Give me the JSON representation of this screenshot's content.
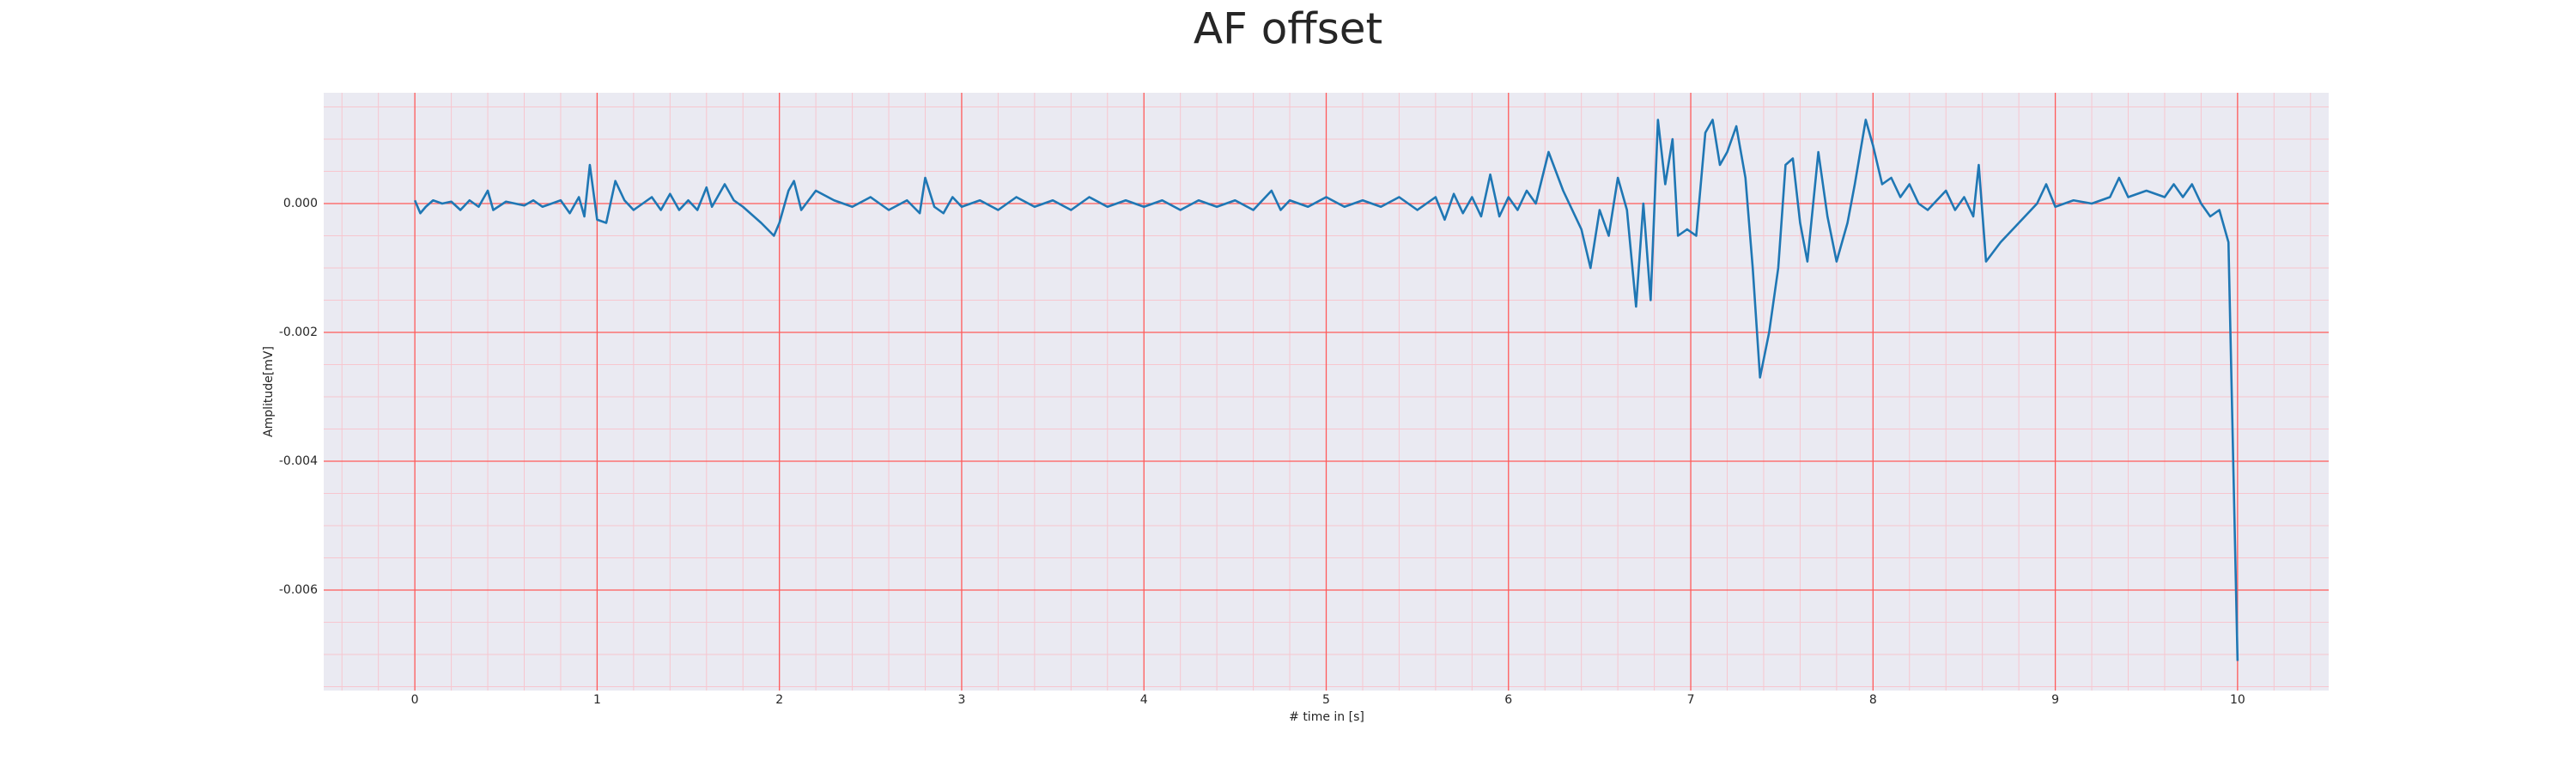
{
  "chart_data": {
    "type": "line",
    "title": "AF offset",
    "xlabel": "# time in [s]",
    "ylabel": "Amplitude[mV]",
    "color": "#1f77b4",
    "facecolor": "#eaeaf2",
    "grid": true,
    "grid_color": "#ff5a5a",
    "minor_grid": true,
    "minor_grid_color": "#f7c6cf",
    "xlim": [
      -0.5,
      10.5
    ],
    "ylim": [
      -0.00756,
      0.00172
    ],
    "xticks": [
      0,
      1,
      2,
      3,
      4,
      5,
      6,
      7,
      8,
      9,
      10
    ],
    "yticks": [
      {
        "value": 0,
        "label": "0.000"
      },
      {
        "value": -0.002,
        "label": "-0.002"
      },
      {
        "value": -0.004,
        "label": "-0.004"
      },
      {
        "value": -0.006,
        "label": "-0.006"
      }
    ],
    "xminorticks": [
      -0.4,
      -0.2,
      0.2,
      0.4,
      0.6,
      0.8,
      1.2,
      1.4,
      1.6,
      1.8,
      2.2,
      2.4,
      2.6,
      2.8,
      3.2,
      3.4,
      3.6,
      3.8,
      4.2,
      4.4,
      4.6,
      4.8,
      5.2,
      5.4,
      5.6,
      5.8,
      6.2,
      6.4,
      6.6,
      6.8,
      7.2,
      7.4,
      7.6,
      7.8,
      8.2,
      8.4,
      8.6,
      8.8,
      9.2,
      9.4,
      9.6,
      9.8,
      10.2,
      10.4
    ],
    "yminorticks": [
      0.0015,
      0.001,
      0.0005,
      -0.0005,
      -0.001,
      -0.0015,
      -0.0025,
      -0.003,
      -0.0035,
      -0.0045,
      -0.005,
      -0.0055,
      -0.0065,
      -0.007,
      -0.0075
    ],
    "x": [
      0,
      0.03,
      0.06,
      0.1,
      0.15,
      0.2,
      0.25,
      0.3,
      0.35,
      0.4,
      0.43,
      0.5,
      0.6,
      0.65,
      0.7,
      0.8,
      0.85,
      0.9,
      0.93,
      0.96,
      1.0,
      1.05,
      1.1,
      1.15,
      1.2,
      1.3,
      1.35,
      1.4,
      1.45,
      1.5,
      1.55,
      1.6,
      1.63,
      1.7,
      1.75,
      1.8,
      1.9,
      1.97,
      2.0,
      2.05,
      2.08,
      2.12,
      2.2,
      2.3,
      2.4,
      2.5,
      2.6,
      2.7,
      2.77,
      2.8,
      2.85,
      2.9,
      2.95,
      3.0,
      3.1,
      3.2,
      3.3,
      3.4,
      3.5,
      3.6,
      3.7,
      3.8,
      3.9,
      4.0,
      4.1,
      4.2,
      4.3,
      4.4,
      4.5,
      4.6,
      4.7,
      4.75,
      4.8,
      4.9,
      5.0,
      5.1,
      5.2,
      5.3,
      5.4,
      5.5,
      5.6,
      5.65,
      5.7,
      5.75,
      5.8,
      5.85,
      5.9,
      5.95,
      6.0,
      6.05,
      6.1,
      6.15,
      6.22,
      6.3,
      6.4,
      6.45,
      6.5,
      6.55,
      6.6,
      6.65,
      6.7,
      6.74,
      6.78,
      6.82,
      6.86,
      6.9,
      6.93,
      6.98,
      7.03,
      7.08,
      7.12,
      7.16,
      7.2,
      7.25,
      7.3,
      7.34,
      7.38,
      7.43,
      7.48,
      7.52,
      7.56,
      7.6,
      7.64,
      7.7,
      7.75,
      7.8,
      7.86,
      7.9,
      7.96,
      8.0,
      8.05,
      8.1,
      8.15,
      8.2,
      8.25,
      8.3,
      8.4,
      8.45,
      8.5,
      8.55,
      8.58,
      8.62,
      8.7,
      8.8,
      8.9,
      8.95,
      9.0,
      9.1,
      9.2,
      9.3,
      9.35,
      9.4,
      9.5,
      9.6,
      9.65,
      9.7,
      9.75,
      9.8,
      9.85,
      9.9,
      9.95,
      10.0
    ],
    "values": [
      5e-05,
      -0.00015,
      -5e-05,
      5e-05,
      0,
      3e-05,
      -0.0001,
      5e-05,
      -5e-05,
      0.0002,
      -0.0001,
      3e-05,
      -3e-05,
      5e-05,
      -5e-05,
      5e-05,
      -0.00015,
      0.0001,
      -0.0002,
      0.0006,
      -0.00025,
      -0.0003,
      0.00035,
      5e-05,
      -0.0001,
      0.0001,
      -0.0001,
      0.00015,
      -0.0001,
      5e-05,
      -0.0001,
      0.00025,
      -5e-05,
      0.0003,
      5e-05,
      -5e-05,
      -0.0003,
      -0.0005,
      -0.0003,
      0.0002,
      0.00035,
      -0.0001,
      0.0002,
      5e-05,
      -5e-05,
      0.0001,
      -0.0001,
      5e-05,
      -0.00015,
      0.0004,
      -5e-05,
      -0.00015,
      0.0001,
      -5e-05,
      5e-05,
      -0.0001,
      0.0001,
      -5e-05,
      5e-05,
      -0.0001,
      0.0001,
      -5e-05,
      5e-05,
      -5e-05,
      5e-05,
      -0.0001,
      5e-05,
      -5e-05,
      5e-05,
      -0.0001,
      0.0002,
      -0.0001,
      5e-05,
      -5e-05,
      0.0001,
      -5e-05,
      5e-05,
      -5e-05,
      0.0001,
      -0.0001,
      0.0001,
      -0.00025,
      0.00015,
      -0.00015,
      0.0001,
      -0.0002,
      0.00045,
      -0.0002,
      0.0001,
      -0.0001,
      0.0002,
      0,
      0.0008,
      0.0002,
      -0.0004,
      -0.001,
      -0.0001,
      -0.0005,
      0.0004,
      -0.0001,
      -0.0016,
      0,
      -0.0015,
      0.0013,
      0.0003,
      0.001,
      -0.0005,
      -0.0004,
      -0.0005,
      0.0011,
      0.0013,
      0.0006,
      0.0008,
      0.0012,
      0.0004,
      -0.001,
      -0.0027,
      -0.002,
      -0.001,
      0.0006,
      0.0007,
      -0.0003,
      -0.0009,
      0.0008,
      -0.0002,
      -0.0009,
      -0.0003,
      0.0003,
      0.0013,
      0.0009,
      0.0003,
      0.0004,
      0.0001,
      0.0003,
      0,
      -0.0001,
      0.0002,
      -0.0001,
      0.0001,
      -0.0002,
      0.0006,
      -0.0009,
      -0.0006,
      -0.0003,
      0,
      0.0003,
      -5e-05,
      5e-05,
      0,
      0.0001,
      0.0004,
      0.0001,
      0.0002,
      0.0001,
      0.0003,
      0.0001,
      0.0003,
      0,
      -0.0002,
      -0.0001,
      -0.0006,
      -0.0071
    ]
  }
}
